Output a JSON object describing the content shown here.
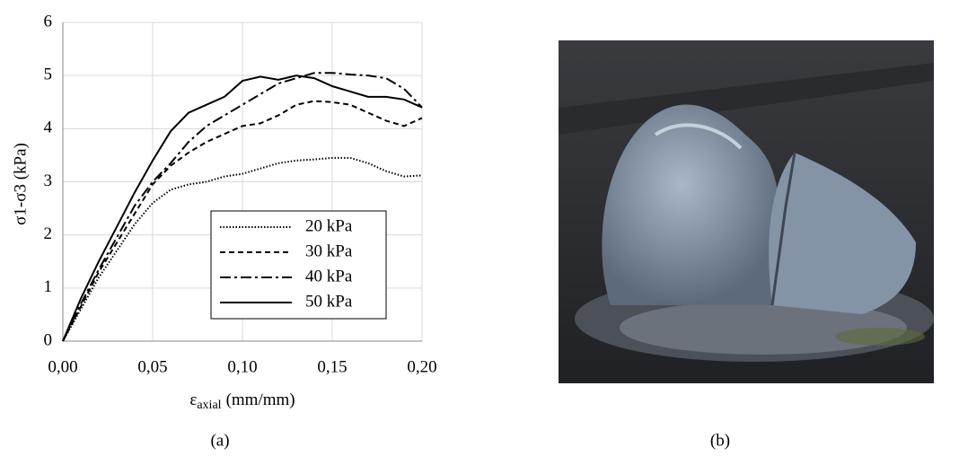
{
  "chart_data": {
    "type": "line",
    "ylabel": "σ1-σ3 (kPa)",
    "xlabel": {
      "symbol": "ε",
      "subscript": "axial",
      "unit": "(mm/mm)"
    },
    "x": [
      0,
      0.01,
      0.02,
      0.03,
      0.04,
      0.05,
      0.06,
      0.07,
      0.08,
      0.09,
      0.1,
      0.11,
      0.12,
      0.13,
      0.14,
      0.15,
      0.16,
      0.17,
      0.18,
      0.19,
      0.2
    ],
    "series": [
      {
        "name": "20 kPa",
        "color": "#000000",
        "dash": "1.5,2",
        "values": [
          0,
          0.6,
          1.2,
          1.7,
          2.2,
          2.6,
          2.85,
          2.95,
          3.0,
          3.1,
          3.15,
          3.25,
          3.35,
          3.4,
          3.42,
          3.45,
          3.45,
          3.35,
          3.2,
          3.1,
          3.12
        ]
      },
      {
        "name": "30 kPa",
        "color": "#000000",
        "dash": "6,4",
        "values": [
          0,
          0.65,
          1.3,
          1.85,
          2.4,
          2.95,
          3.3,
          3.55,
          3.75,
          3.9,
          4.05,
          4.1,
          4.25,
          4.45,
          4.52,
          4.5,
          4.45,
          4.3,
          4.15,
          4.05,
          4.2
        ]
      },
      {
        "name": "40 kPa",
        "color": "#000000",
        "dash": "12,4,3,4",
        "values": [
          0,
          0.7,
          1.35,
          1.95,
          2.55,
          3.0,
          3.35,
          3.75,
          4.05,
          4.25,
          4.45,
          4.65,
          4.85,
          4.95,
          5.05,
          5.05,
          5.02,
          5.0,
          4.95,
          4.75,
          4.4
        ]
      },
      {
        "name": "50 kPa",
        "color": "#000000",
        "dash": "none",
        "values": [
          0,
          0.8,
          1.5,
          2.15,
          2.8,
          3.4,
          3.95,
          4.3,
          4.45,
          4.6,
          4.9,
          4.98,
          4.92,
          5.0,
          4.95,
          4.8,
          4.7,
          4.6,
          4.6,
          4.55,
          4.4
        ]
      }
    ],
    "xlim": [
      0,
      0.2
    ],
    "xticks": [
      {
        "value": 0,
        "label": "0,00"
      },
      {
        "value": 0.05,
        "label": "0,05"
      },
      {
        "value": 0.1,
        "label": "0,10"
      },
      {
        "value": 0.15,
        "label": "0,15"
      },
      {
        "value": 0.2,
        "label": "0,20"
      }
    ],
    "ylim": [
      0,
      6
    ],
    "yticks": [
      0,
      1,
      2,
      3,
      4,
      5,
      6
    ],
    "grid": true,
    "legend": "lower right"
  },
  "captions": [
    "(a)",
    "(b)"
  ]
}
